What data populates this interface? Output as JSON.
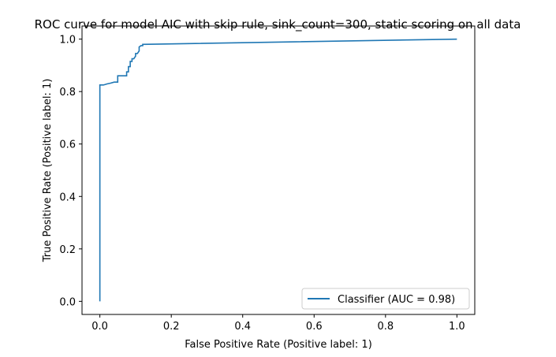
{
  "chart_data": {
    "type": "line",
    "title": "ROC curve for model AIC with skip rule, sink_count=300, static scoring on all data",
    "xlabel": "False Positive Rate (Positive label: 1)",
    "ylabel": "True Positive Rate (Positive label: 1)",
    "xlim": [
      -0.05,
      1.05
    ],
    "ylim": [
      -0.05,
      1.05
    ],
    "xticks": [
      0.0,
      0.2,
      0.4,
      0.6,
      0.8,
      1.0
    ],
    "yticks": [
      0.0,
      0.2,
      0.4,
      0.6,
      0.8,
      1.0
    ],
    "xtick_labels": [
      "0.0",
      "0.2",
      "0.4",
      "0.6",
      "0.8",
      "1.0"
    ],
    "ytick_labels": [
      "0.0",
      "0.2",
      "0.4",
      "0.6",
      "0.8",
      "1.0"
    ],
    "grid": false,
    "legend": {
      "placement": "lower-right",
      "entries": [
        "Classifier (AUC = 0.98)"
      ]
    },
    "series": [
      {
        "name": "Classifier (AUC = 0.98)",
        "color": "#1f77b4",
        "x": [
          0.0,
          0.0,
          0.0,
          0.01,
          0.01,
          0.02,
          0.03,
          0.04,
          0.05,
          0.05,
          0.06,
          0.07,
          0.075,
          0.075,
          0.08,
          0.08,
          0.085,
          0.085,
          0.09,
          0.09,
          0.095,
          0.1,
          0.1,
          0.105,
          0.11,
          0.11,
          0.115,
          0.12,
          0.12,
          1.0
        ],
        "y": [
          0.0,
          0.825,
          0.825,
          0.825,
          0.825,
          0.829,
          0.832,
          0.836,
          0.836,
          0.86,
          0.86,
          0.86,
          0.86,
          0.875,
          0.875,
          0.895,
          0.895,
          0.915,
          0.915,
          0.925,
          0.925,
          0.935,
          0.945,
          0.945,
          0.955,
          0.97,
          0.975,
          0.975,
          0.98,
          1.0
        ]
      }
    ]
  }
}
